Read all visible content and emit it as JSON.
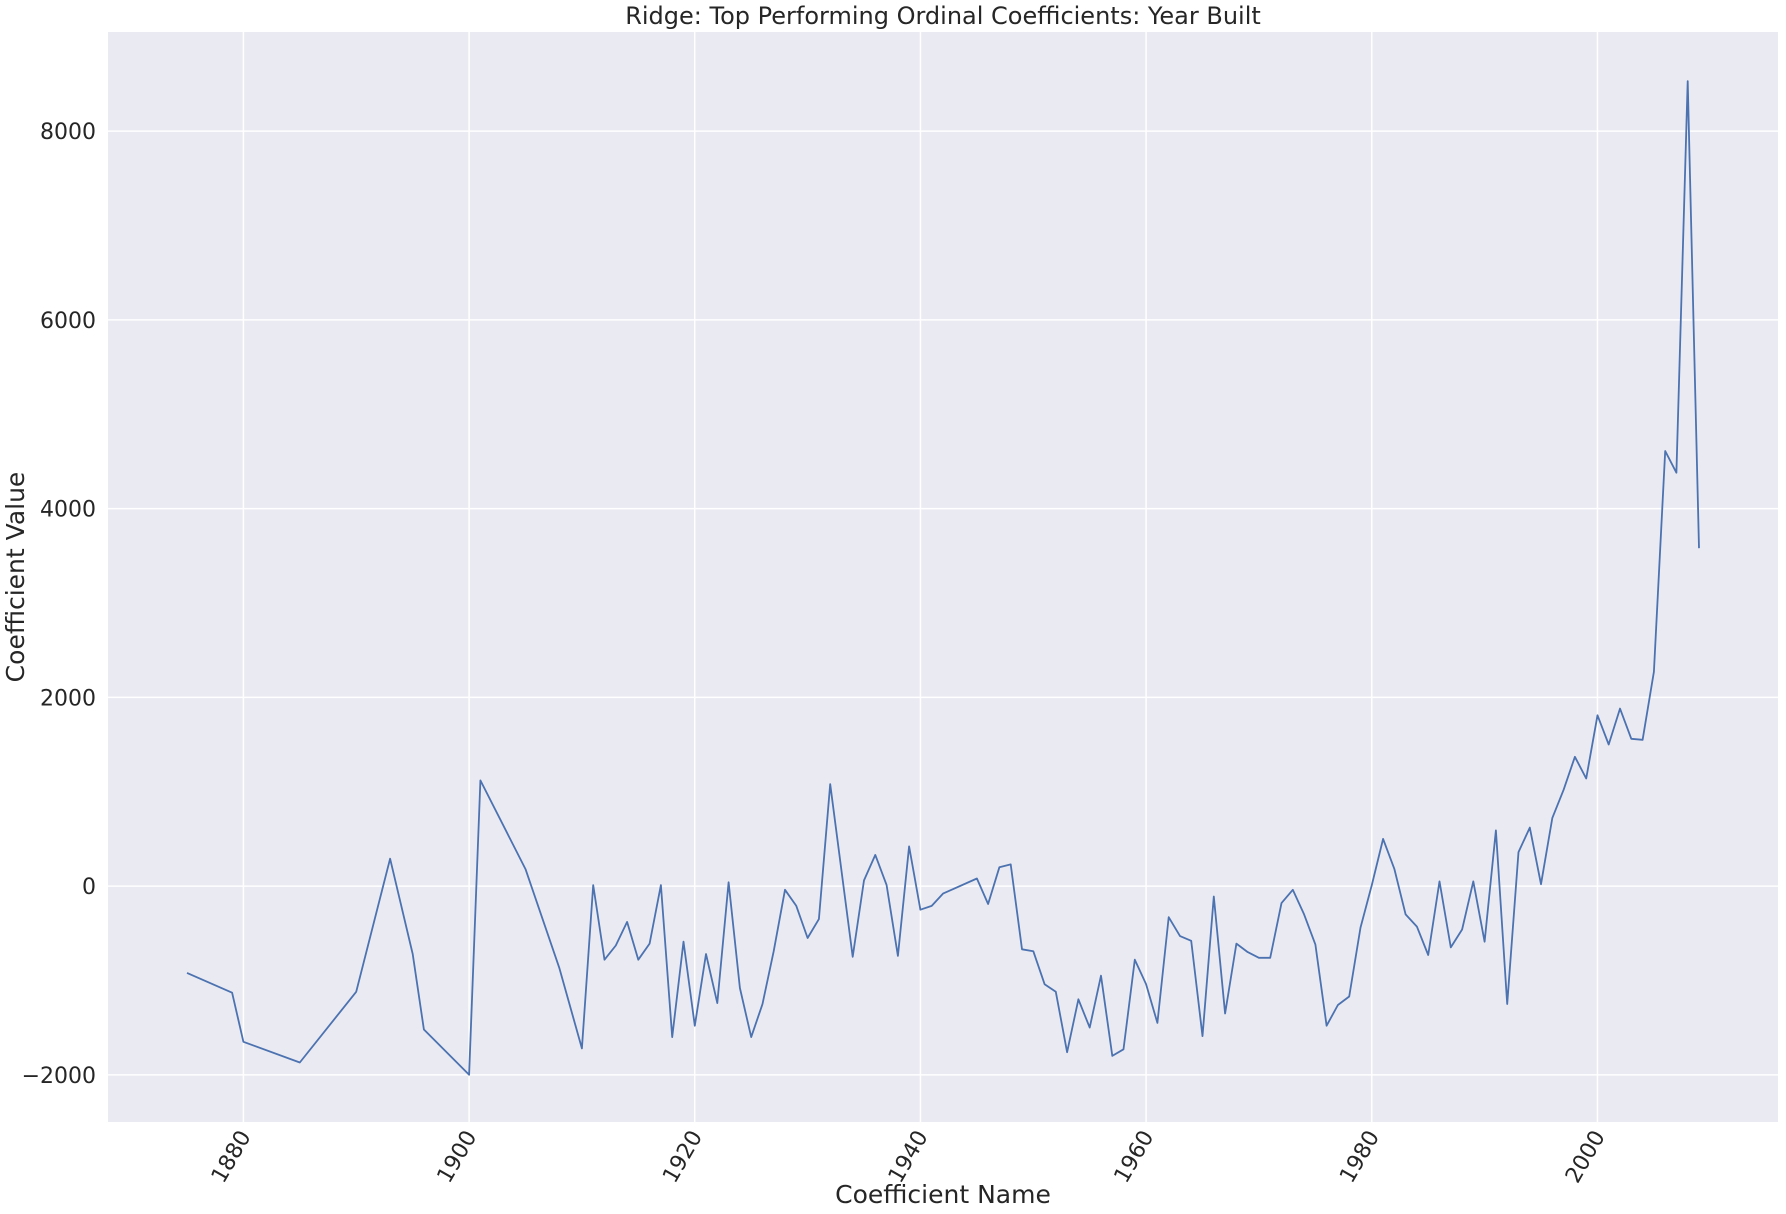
{
  "chart_data": {
    "type": "line",
    "title": "Ridge: Top Performing Ordinal Coefficients: Year Built",
    "xlabel": "Coefficient Name",
    "ylabel": "Coefficient Value",
    "xlim": [
      1868,
      2016
    ],
    "ylim": [
      -2500,
      9050
    ],
    "xticks": [
      1880,
      1900,
      1920,
      1940,
      1960,
      1980,
      2000
    ],
    "yticks": [
      -2000,
      0,
      2000,
      4000,
      6000,
      8000
    ],
    "grid": true,
    "colors": {
      "background": "#eaeaf2",
      "grid": "#ffffff",
      "line": "#4c72b0"
    },
    "series": [
      {
        "x": [
          1875,
          1879,
          1880,
          1885,
          1890,
          1893,
          1895,
          1896,
          1900,
          1901,
          1905,
          1908,
          1910,
          1911,
          1912,
          1913,
          1914,
          1915,
          1916,
          1917,
          1918,
          1919,
          1920,
          1921,
          1922,
          1923,
          1924,
          1925,
          1926,
          1927,
          1928,
          1929,
          1930,
          1931,
          1932,
          1934,
          1935,
          1936,
          1937,
          1938,
          1939,
          1940,
          1941,
          1942,
          1945,
          1946,
          1947,
          1948,
          1949,
          1950,
          1951,
          1952,
          1953,
          1954,
          1955,
          1956,
          1957,
          1958,
          1959,
          1960,
          1961,
          1962,
          1963,
          1964,
          1965,
          1966,
          1967,
          1968,
          1969,
          1970,
          1971,
          1972,
          1973,
          1974,
          1975,
          1976,
          1977,
          1978,
          1979,
          1980,
          1981,
          1982,
          1983,
          1984,
          1985,
          1986,
          1987,
          1988,
          1989,
          1990,
          1991,
          1992,
          1993,
          1994,
          1995,
          1996,
          1997,
          1998,
          1999,
          2000,
          2001,
          2002,
          2003,
          2004,
          2005,
          2006,
          2007,
          2008,
          2009
        ],
        "values": [
          -920,
          -1130,
          -1650,
          -1870,
          -1120,
          290,
          -720,
          -1520,
          -2000,
          1120,
          180,
          -870,
          -1720,
          10,
          -780,
          -630,
          -380,
          -780,
          -610,
          10,
          -1600,
          -590,
          -1480,
          -720,
          -1240,
          40,
          -1080,
          -1600,
          -1250,
          -690,
          -40,
          -210,
          -550,
          -350,
          1080,
          -750,
          60,
          330,
          10,
          -740,
          420,
          -250,
          -210,
          -80,
          80,
          -190,
          200,
          230,
          -670,
          -690,
          -1040,
          -1120,
          -1760,
          -1200,
          -1500,
          -950,
          -1800,
          -1730,
          -780,
          -1040,
          -1450,
          -330,
          -530,
          -580,
          -1590,
          -110,
          -1350,
          -610,
          -700,
          -760,
          -760,
          -180,
          -40,
          -300,
          -620,
          -1480,
          -1260,
          -1170,
          -440,
          10,
          500,
          180,
          -300,
          -430,
          -730,
          50,
          -650,
          -460,
          50,
          -590,
          590,
          -1250,
          360,
          620,
          20,
          720,
          1020,
          1370,
          1140,
          1810,
          1500,
          1880,
          1560,
          1550,
          2270,
          4610,
          4380,
          8530,
          3580
        ]
      }
    ]
  }
}
